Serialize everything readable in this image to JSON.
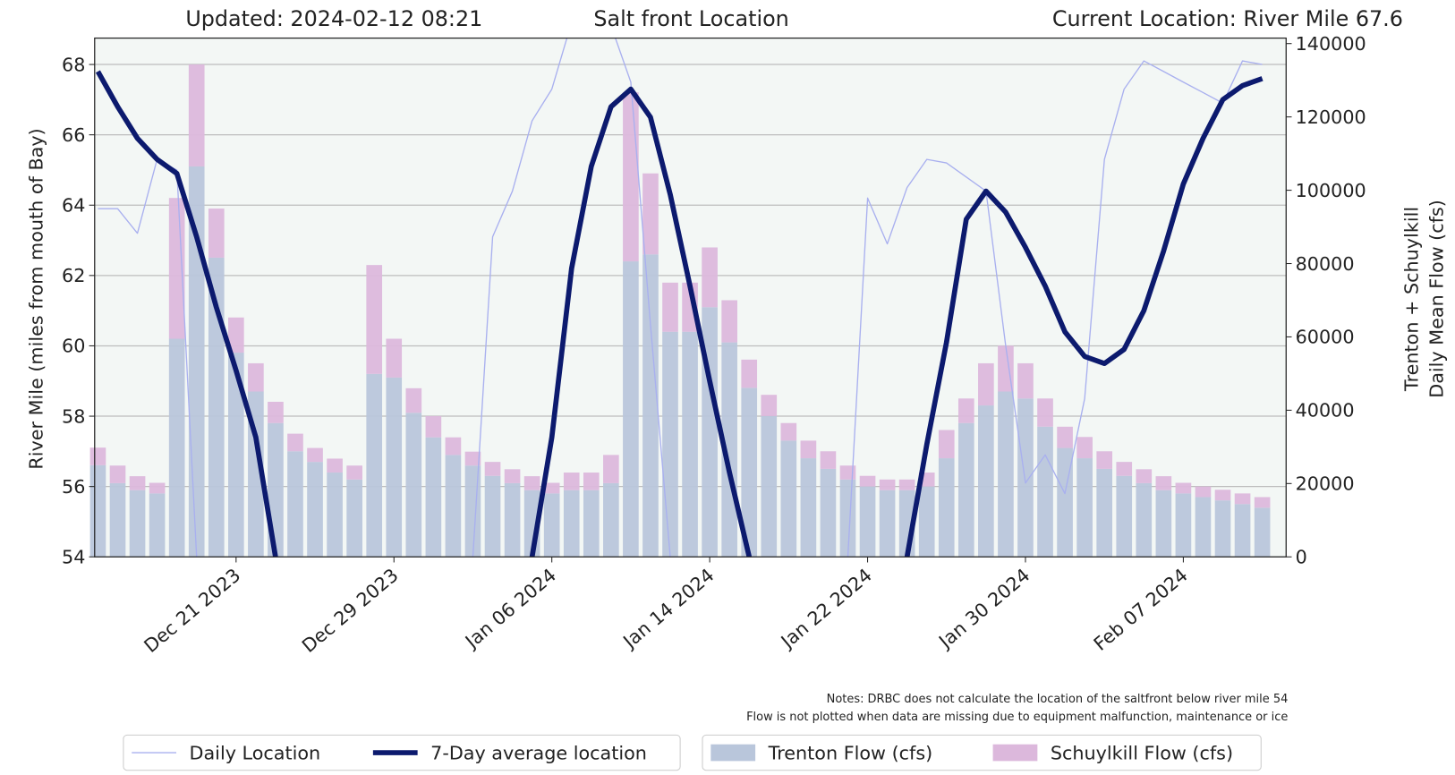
{
  "chart_data": {
    "type": "combo",
    "title": "Salt front Location",
    "subtitle": "Updated: 2024-02-12 08:21",
    "annotation": "Current Location: River Mile 67.6",
    "notes": [
      "Notes: DRBC does not calculate the location of the saltfront below river mile 54",
      "Flow is not plotted when data are missing due to equipment malfunction, maintenance or ice"
    ],
    "y_label": "River Mile (miles from mouth of Bay)",
    "y2_label": [
      "Trenton + Schuylkill",
      "Daily Mean Flow (cfs)"
    ],
    "x": [
      "2023-12-14",
      "2023-12-15",
      "2023-12-16",
      "2023-12-17",
      "2023-12-18",
      "2023-12-19",
      "2023-12-20",
      "2023-12-21",
      "2023-12-22",
      "2023-12-23",
      "2023-12-24",
      "2023-12-25",
      "2023-12-26",
      "2023-12-27",
      "2023-12-28",
      "2023-12-29",
      "2023-12-30",
      "2023-12-31",
      "2024-01-01",
      "2024-01-02",
      "2024-01-03",
      "2024-01-04",
      "2024-01-05",
      "2024-01-06",
      "2024-01-07",
      "2024-01-08",
      "2024-01-09",
      "2024-01-10",
      "2024-01-11",
      "2024-01-12",
      "2024-01-13",
      "2024-01-14",
      "2024-01-15",
      "2024-01-16",
      "2024-01-17",
      "2024-01-18",
      "2024-01-19",
      "2024-01-20",
      "2024-01-21",
      "2024-01-22",
      "2024-01-23",
      "2024-01-24",
      "2024-01-25",
      "2024-01-26",
      "2024-01-27",
      "2024-01-28",
      "2024-01-29",
      "2024-01-30",
      "2024-01-31",
      "2024-02-01",
      "2024-02-02",
      "2024-02-03",
      "2024-02-04",
      "2024-02-05",
      "2024-02-06",
      "2024-02-07",
      "2024-02-08",
      "2024-02-09",
      "2024-02-10",
      "2024-02-11"
    ],
    "xlim": [
      "2023-12-13T20:00:00Z",
      "2024-02-12T05:00:00Z"
    ],
    "xticks": [
      {
        "value": "2023-12-21",
        "label": "Dec 21 2023"
      },
      {
        "value": "2023-12-29",
        "label": "Dec 29 2023"
      },
      {
        "value": "2024-01-06",
        "label": "Jan 06 2024"
      },
      {
        "value": "2024-01-14",
        "label": "Jan 14 2024"
      },
      {
        "value": "2024-01-22",
        "label": "Jan 22 2024"
      },
      {
        "value": "2024-01-30",
        "label": "Jan 30 2024"
      },
      {
        "value": "2024-02-07",
        "label": "Feb 07 2024"
      }
    ],
    "ylim": [
      54,
      68.75
    ],
    "yticks": [
      54,
      56,
      58,
      60,
      62,
      64,
      66,
      68
    ],
    "y2lim": [
      0,
      141500
    ],
    "y2ticks": [
      0,
      20000,
      40000,
      60000,
      80000,
      100000,
      120000,
      140000
    ],
    "grid": true,
    "series": [
      {
        "name": "Daily Location",
        "type": "line",
        "color": "#a9b0ef",
        "values": [
          63.9,
          63.9,
          63.2,
          65.3,
          65.0,
          54,
          null,
          null,
          null,
          null,
          null,
          null,
          null,
          null,
          null,
          null,
          null,
          null,
          null,
          54,
          63.1,
          64.4,
          66.4,
          67.3,
          69.2,
          69.0,
          69.1,
          67.5,
          60.6,
          54,
          null,
          null,
          null,
          null,
          null,
          null,
          null,
          null,
          54,
          64.2,
          62.9,
          64.5,
          65.3,
          65.2,
          64.8,
          64.4,
          60.0,
          56.1,
          56.9,
          55.8,
          58.5,
          65.3,
          67.3,
          68.1,
          67.8,
          67.5,
          67.2,
          66.9,
          68.1,
          68.0
        ]
      },
      {
        "name": "7-Day average location",
        "type": "line",
        "color": "#0c1a6e",
        "values": [
          67.8,
          66.8,
          65.9,
          65.3,
          64.9,
          63.1,
          61.1,
          59.3,
          57.4,
          54,
          null,
          null,
          null,
          null,
          null,
          null,
          null,
          null,
          null,
          null,
          null,
          null,
          54,
          57.4,
          62.2,
          65.1,
          66.8,
          67.3,
          66.5,
          64.3,
          61.7,
          59.0,
          56.4,
          54,
          null,
          null,
          null,
          null,
          null,
          null,
          null,
          54,
          57.2,
          60.1,
          63.6,
          64.4,
          63.8,
          62.8,
          61.7,
          60.4,
          59.7,
          59.5,
          59.9,
          61.0,
          62.7,
          64.6,
          65.9,
          67.0,
          67.4,
          67.6
        ]
      },
      {
        "name": "Trenton Flow (cfs)",
        "type": "bar",
        "axis": "y2",
        "color": "#b9c6db",
        "values": [
          25000,
          20100,
          18200,
          17300,
          59500,
          106500,
          81600,
          55700,
          45100,
          36500,
          28800,
          25900,
          23000,
          21100,
          49900,
          48900,
          39300,
          32600,
          27800,
          24900,
          22100,
          20100,
          18200,
          17300,
          18200,
          18200,
          20100,
          80600,
          82500,
          61400,
          61400,
          68100,
          58500,
          46100,
          38400,
          31700,
          26900,
          24000,
          21100,
          19200,
          18200,
          18200,
          19200,
          26900,
          36500,
          41300,
          45100,
          43200,
          35500,
          29700,
          26900,
          24000,
          22100,
          20100,
          18200,
          17300,
          16300,
          15400,
          14400,
          13400
        ]
      },
      {
        "name": "Schuylkill Flow (cfs)",
        "type": "bar",
        "axis": "y2",
        "stacked": true,
        "color": "#dcb8dc",
        "values": [
          4800,
          4800,
          3800,
          2900,
          38400,
          27800,
          13400,
          9600,
          7700,
          5800,
          4800,
          3800,
          3800,
          3800,
          29700,
          10600,
          6700,
          5800,
          4800,
          3800,
          3800,
          3800,
          3800,
          2900,
          4800,
          4800,
          7700,
          46100,
          22100,
          13400,
          13400,
          16300,
          11500,
          7700,
          5800,
          4800,
          4800,
          4800,
          3800,
          2900,
          2900,
          2900,
          3800,
          7700,
          6700,
          11500,
          12500,
          9600,
          7700,
          5800,
          5800,
          4800,
          3800,
          3800,
          3800,
          2900,
          2900,
          2900,
          2900,
          2900
        ]
      }
    ]
  }
}
